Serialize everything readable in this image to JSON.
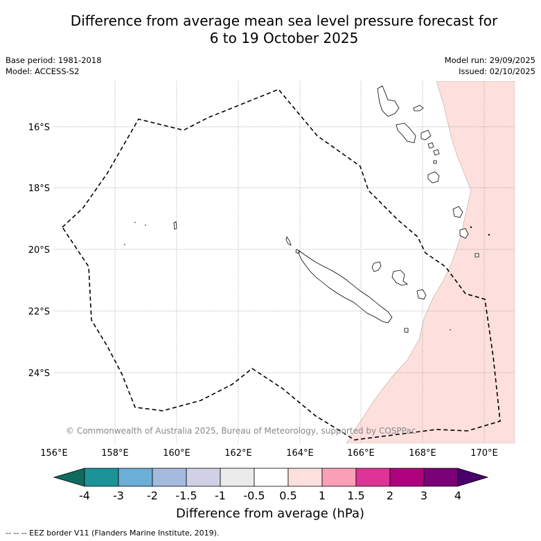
{
  "title": {
    "line1": "Difference from average mean sea level pressure forecast for",
    "line2": "6 to 19 October 2025"
  },
  "meta": {
    "base_period": "Base period: 1981-2018",
    "model": "Model: ACCESS-S2",
    "model_run": "Model run: 29/09/2025",
    "issued": "Issued: 02/10/2025"
  },
  "map": {
    "lat_labels": [
      "16°S",
      "18°S",
      "20°S",
      "22°S",
      "24°S"
    ],
    "lon_labels": [
      "156°E",
      "158°E",
      "160°E",
      "162°E",
      "164°E",
      "166°E",
      "168°E",
      "170°E"
    ],
    "anomaly_region_color": "#fde0dd",
    "copyright": "© Commonwealth of Australia 2025, Bureau of Meteorology, supported by COSPPac"
  },
  "colorbar": {
    "colors": [
      "#0e6b5e",
      "#1b9399",
      "#6baed6",
      "#a5bbde",
      "#d0d1e6",
      "#ebebeb",
      "#ffffff",
      "#fde0dd",
      "#fa9fb5",
      "#dd3497",
      "#ae017e",
      "#7a0177",
      "#49006a"
    ],
    "tick_labels": [
      "-4",
      "-3",
      "-2",
      "-1.5",
      "-1",
      "-0.5",
      "0.5",
      "1",
      "1.5",
      "2",
      "3",
      "4"
    ],
    "label": "Difference from average (hPa)"
  },
  "footer": {
    "legend": "--  --  -- EEZ border V11 (Flanders Marine Institute, 2019)."
  }
}
